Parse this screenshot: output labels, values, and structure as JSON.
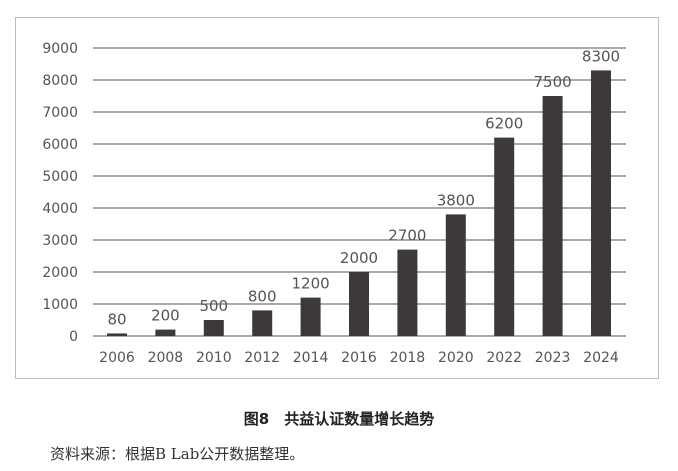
{
  "chart_data": {
    "type": "bar",
    "categories": [
      "2006",
      "2008",
      "2010",
      "2012",
      "2014",
      "2016",
      "2018",
      "2020",
      "2022",
      "2023",
      "2024"
    ],
    "values": [
      80,
      200,
      500,
      800,
      1200,
      2000,
      2700,
      3800,
      6200,
      7500,
      8300
    ],
    "ylim": [
      0,
      9000
    ],
    "yticks": [
      0,
      1000,
      2000,
      3000,
      4000,
      5000,
      6000,
      7000,
      8000,
      9000
    ],
    "grid": true,
    "bar_color": "#3d3939",
    "data_labels": true,
    "title": "",
    "xlabel": "",
    "ylabel": ""
  },
  "caption": "图8　共益认证数量增长趋势",
  "source": "资料来源：根据B Lab公开数据整理。"
}
